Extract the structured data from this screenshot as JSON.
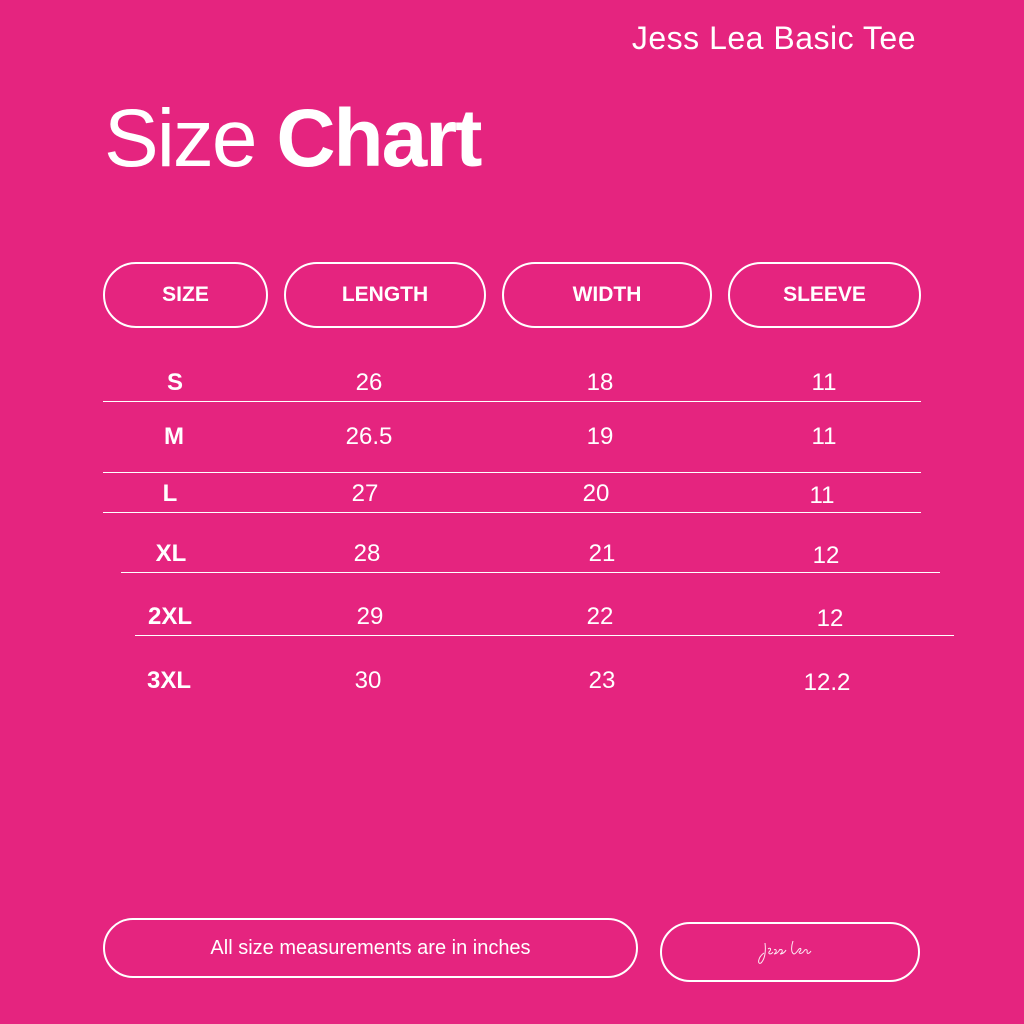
{
  "brand": "Jess Lea Basic Tee",
  "title": {
    "light": "Size",
    "bold": "Chart"
  },
  "headers": [
    "SIZE",
    "LENGTH",
    "WIDTH",
    "SLEEVE"
  ],
  "rows": [
    {
      "size": "S",
      "length": "26",
      "width": "18",
      "sleeve": "11"
    },
    {
      "size": "M",
      "length": "26.5",
      "width": "19",
      "sleeve": "11"
    },
    {
      "size": "L",
      "length": "27",
      "width": "20",
      "sleeve": "11"
    },
    {
      "size": "XL",
      "length": "28",
      "width": "21",
      "sleeve": "12"
    },
    {
      "size": "2XL",
      "length": "29",
      "width": "22",
      "sleeve": "12"
    },
    {
      "size": "3XL",
      "length": "30",
      "width": "23",
      "sleeve": "12.2"
    }
  ],
  "footer": {
    "note": "All size measurements are in inches",
    "signature": "jess lea"
  },
  "colors": {
    "background": "#E5247F",
    "foreground": "#FFFFFF"
  }
}
